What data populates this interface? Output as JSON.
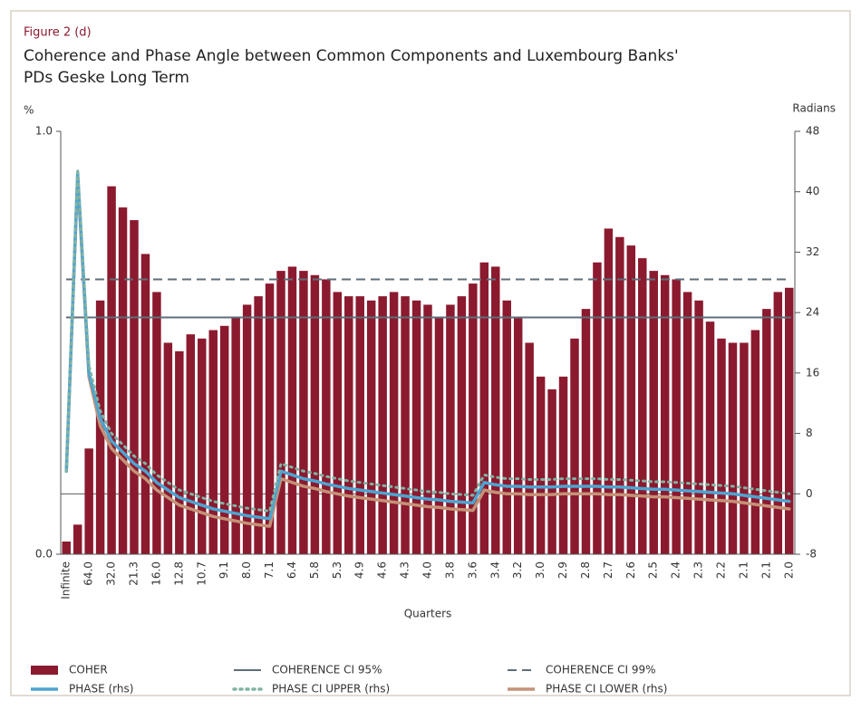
{
  "chart_data": {
    "type": "bar",
    "label": "Figure 2 (d)",
    "title": "Coherence and Phase Angle between Common Components and Luxembourg Banks'",
    "title_line2": "PDs Geske Long Term",
    "ylabel": "%",
    "y2label": "Radians",
    "xlabel": "Quarters",
    "categories": [
      "Infinite",
      null,
      "64.0",
      null,
      "32.0",
      null,
      "21.3",
      null,
      "16.0",
      null,
      "12.8",
      null,
      "10.7",
      null,
      "9.1",
      null,
      "8.0",
      null,
      "7.1",
      null,
      "6.4",
      null,
      "5.8",
      null,
      "5.3",
      null,
      "4.9",
      null,
      "4.6",
      null,
      "4.3",
      null,
      "4.0",
      null,
      "3.8",
      null,
      "3.6",
      null,
      "3.4",
      null,
      "3.2",
      null,
      "3.0",
      null,
      "2.9",
      null,
      "2.8",
      null,
      "2.7",
      null,
      "2.6",
      null,
      "2.5",
      null,
      "2.4",
      null,
      "2.3",
      null,
      "2.2",
      null,
      "2.1",
      null,
      "2.1",
      null,
      "2.0"
    ],
    "ylim": [
      0,
      1
    ],
    "yticks": [
      {
        "value": 0,
        "label": "0.0"
      },
      {
        "value": 1,
        "label": "1.0"
      }
    ],
    "y2lim": [
      -8,
      48
    ],
    "y2ticks": [
      -8,
      0,
      8,
      16,
      24,
      32,
      40,
      48
    ],
    "series": [
      {
        "name": "COHER",
        "style": "bar",
        "color": "#8b1a2f",
        "values": [
          0.03,
          0.07,
          0.25,
          0.6,
          0.87,
          0.82,
          0.79,
          0.71,
          0.62,
          0.5,
          0.48,
          0.52,
          0.51,
          0.53,
          0.54,
          0.56,
          0.59,
          0.61,
          0.64,
          0.67,
          0.68,
          0.67,
          0.66,
          0.65,
          0.62,
          0.61,
          0.61,
          0.6,
          0.61,
          0.62,
          0.61,
          0.6,
          0.59,
          0.56,
          0.59,
          0.61,
          0.64,
          0.69,
          0.68,
          0.6,
          0.56,
          0.5,
          0.42,
          0.39,
          0.42,
          0.51,
          0.58,
          0.69,
          0.77,
          0.75,
          0.73,
          0.7,
          0.67,
          0.66,
          0.65,
          0.62,
          0.6,
          0.55,
          0.51,
          0.5,
          0.5,
          0.53,
          0.58,
          0.62,
          0.63
        ]
      },
      {
        "name": "COHERENCE CI 95%",
        "style": "solid",
        "color": "#5f6e79",
        "value": 0.56
      },
      {
        "name": "COHERENCE CI 99%",
        "style": "dashed",
        "color": "#5f6e79",
        "value": 0.65
      },
      {
        "name": "PHASE (rhs)",
        "style": "line",
        "axis": "y2",
        "color": "#4ea3cf",
        "values": [
          3,
          42.5,
          16,
          10,
          7,
          5.5,
          4,
          3,
          1.5,
          0.5,
          -0.5,
          -1,
          -1.5,
          -2,
          -2.3,
          -2.6,
          -2.9,
          -3.1,
          -3.3,
          3,
          2.5,
          2,
          1.7,
          1.3,
          1,
          0.7,
          0.5,
          0.3,
          0.1,
          -0.1,
          -0.3,
          -0.5,
          -0.7,
          -0.8,
          -1,
          -1.1,
          -1.2,
          1.5,
          1.2,
          1,
          1,
          0.9,
          0.9,
          0.9,
          1,
          1,
          1,
          1,
          0.9,
          0.9,
          0.8,
          0.7,
          0.6,
          0.6,
          0.5,
          0.4,
          0.3,
          0.2,
          0.1,
          0,
          -0.2,
          -0.4,
          -0.6,
          -0.8,
          -1
        ]
      },
      {
        "name": "PHASE CI UPPER (rhs)",
        "style": "dotted",
        "axis": "y2",
        "color": "#7fb3a3",
        "values": [
          3,
          43,
          17,
          11,
          8,
          6.5,
          5,
          4,
          2.5,
          1.5,
          0.5,
          0,
          -0.5,
          -1,
          -1.3,
          -1.6,
          -1.9,
          -2.1,
          -2.3,
          4,
          3.5,
          3,
          2.7,
          2.3,
          2,
          1.7,
          1.5,
          1.3,
          1.1,
          0.9,
          0.7,
          0.5,
          0.3,
          0.2,
          0,
          -0.1,
          -0.2,
          2.5,
          2.2,
          2,
          2,
          1.9,
          1.9,
          1.9,
          2,
          2,
          2,
          2,
          1.9,
          1.9,
          1.8,
          1.7,
          1.6,
          1.6,
          1.5,
          1.4,
          1.3,
          1.2,
          1.1,
          1,
          0.8,
          0.6,
          0.4,
          0.2,
          0
        ]
      },
      {
        "name": "PHASE CI LOWER (rhs)",
        "style": "line",
        "axis": "y2",
        "color": "#c49277",
        "values": [
          3,
          42,
          15.5,
          9,
          6,
          4.5,
          3,
          2,
          0.5,
          -0.5,
          -1.5,
          -2,
          -2.5,
          -3,
          -3.3,
          -3.6,
          -3.9,
          -4.1,
          -4.3,
          2,
          1.5,
          1,
          0.7,
          0.3,
          0,
          -0.3,
          -0.5,
          -0.7,
          -0.9,
          -1.1,
          -1.3,
          -1.5,
          -1.7,
          -1.8,
          -2,
          -2.1,
          -2.2,
          0.5,
          0.2,
          0,
          0,
          -0.1,
          -0.1,
          -0.1,
          0,
          0,
          0,
          0,
          -0.1,
          -0.1,
          -0.2,
          -0.3,
          -0.4,
          -0.4,
          -0.5,
          -0.6,
          -0.7,
          -0.8,
          -0.9,
          -1,
          -1.2,
          -1.4,
          -1.6,
          -1.8,
          -2
        ]
      }
    ]
  }
}
